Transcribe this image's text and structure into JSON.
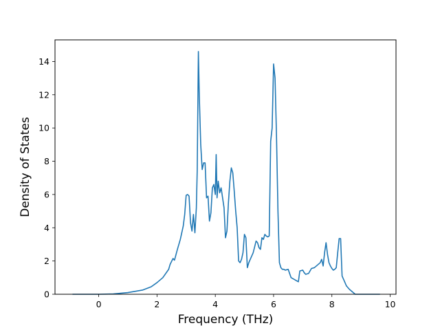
{
  "chart_data": {
    "type": "line",
    "title": "",
    "xlabel": "Frequency (THz)",
    "ylabel": "Density of States",
    "xlim": [
      -1.5,
      10.2
    ],
    "ylim": [
      0,
      15.3
    ],
    "xticks": [
      0,
      2,
      4,
      6,
      8,
      10
    ],
    "yticks": [
      0,
      2,
      4,
      6,
      8,
      10,
      12,
      14
    ],
    "grid": false,
    "line_color": "#1f77b4",
    "series": [
      {
        "x": [
          -0.9,
          -0.5,
          0,
          0.5,
          1.0,
          1.5,
          1.8,
          2.0,
          2.2,
          2.4,
          2.45,
          2.55,
          2.6,
          2.7,
          2.8,
          2.9,
          2.95,
          3.0,
          3.05,
          3.1,
          3.15,
          3.2,
          3.25,
          3.3,
          3.35,
          3.38,
          3.42,
          3.45,
          3.5,
          3.55,
          3.6,
          3.65,
          3.7,
          3.75,
          3.8,
          3.85,
          3.9,
          3.95,
          4.0,
          4.03,
          4.06,
          4.1,
          4.15,
          4.2,
          4.25,
          4.3,
          4.35,
          4.4,
          4.45,
          4.5,
          4.55,
          4.6,
          4.65,
          4.7,
          4.75,
          4.8,
          4.85,
          4.9,
          4.95,
          5.0,
          5.05,
          5.1,
          5.15,
          5.2,
          5.3,
          5.4,
          5.45,
          5.5,
          5.55,
          5.6,
          5.65,
          5.7,
          5.75,
          5.8,
          5.85,
          5.9,
          5.95,
          6.0,
          6.05,
          6.1,
          6.15,
          6.2,
          6.25,
          6.3,
          6.35,
          6.4,
          6.5,
          6.6,
          6.7,
          6.8,
          6.85,
          6.9,
          7.0,
          7.05,
          7.1,
          7.2,
          7.3,
          7.4,
          7.5,
          7.6,
          7.65,
          7.7,
          7.75,
          7.8,
          7.85,
          7.9,
          7.95,
          8.0,
          8.05,
          8.1,
          8.15,
          8.2,
          8.25,
          8.3,
          8.35,
          8.4,
          8.5,
          8.6,
          8.7,
          8.8,
          9.0,
          9.3,
          9.65
        ],
        "y": [
          0,
          0,
          0,
          0.02,
          0.1,
          0.25,
          0.45,
          0.7,
          1.0,
          1.5,
          1.8,
          2.15,
          2.05,
          2.7,
          3.3,
          4.1,
          4.8,
          5.95,
          6.0,
          5.9,
          4.3,
          3.8,
          4.8,
          3.7,
          5.2,
          7.5,
          14.6,
          12.0,
          9.0,
          7.5,
          7.9,
          7.9,
          5.8,
          5.9,
          4.4,
          4.9,
          6.4,
          6.6,
          6.0,
          8.4,
          5.8,
          6.8,
          6.1,
          6.4,
          5.8,
          5.2,
          3.4,
          3.8,
          5.5,
          6.8,
          7.6,
          7.3,
          6.2,
          5.0,
          4.0,
          2.0,
          1.9,
          2.1,
          2.5,
          3.6,
          3.4,
          1.6,
          1.9,
          2.1,
          2.5,
          3.2,
          3.1,
          2.8,
          2.7,
          3.4,
          3.3,
          3.6,
          3.5,
          3.45,
          3.5,
          9.2,
          10.0,
          13.85,
          13.0,
          9.5,
          5.0,
          1.9,
          1.6,
          1.5,
          1.5,
          1.45,
          1.5,
          1.0,
          0.9,
          0.8,
          0.75,
          1.4,
          1.45,
          1.3,
          1.2,
          1.25,
          1.55,
          1.6,
          1.75,
          1.9,
          2.1,
          1.7,
          2.5,
          3.1,
          2.4,
          1.9,
          1.7,
          1.55,
          1.45,
          1.5,
          1.6,
          2.5,
          3.35,
          3.35,
          1.1,
          0.9,
          0.5,
          0.3,
          0.15,
          0.0,
          0,
          0,
          0
        ]
      }
    ]
  }
}
